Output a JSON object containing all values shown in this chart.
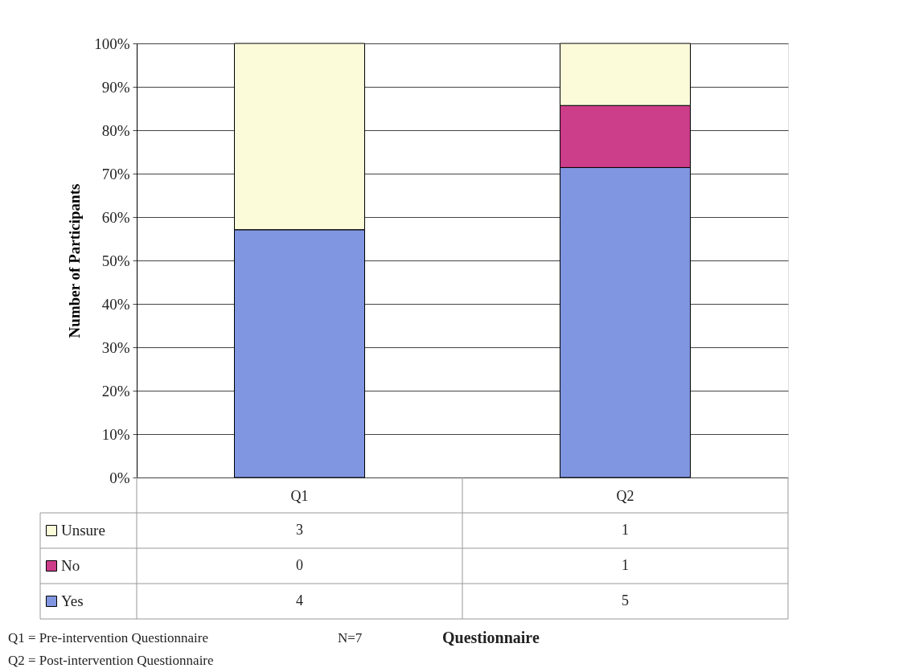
{
  "chart_data": {
    "type": "bar",
    "stacked": true,
    "ylabel": "Number of Participants",
    "categories": [
      "Q1",
      "Q2"
    ],
    "series": [
      {
        "name": "Yes",
        "color": "#8096e0",
        "values": [
          57.1,
          71.4
        ]
      },
      {
        "name": "No",
        "color": "#cc3d8a",
        "values": [
          0,
          14.3
        ]
      },
      {
        "name": "Unsure",
        "color": "#fbfbda",
        "values": [
          42.9,
          14.3
        ]
      }
    ],
    "ylim": [
      0,
      100
    ],
    "yticks": [
      {
        "value": 0,
        "label": "0%"
      },
      {
        "value": 10,
        "label": "10%"
      },
      {
        "value": 20,
        "label": "20%"
      },
      {
        "value": 30,
        "label": "30%"
      },
      {
        "value": 40,
        "label": "40%"
      },
      {
        "value": 50,
        "label": "50%"
      },
      {
        "value": 60,
        "label": "60%"
      },
      {
        "value": 70,
        "label": "70%"
      },
      {
        "value": 80,
        "label": "80%"
      },
      {
        "value": 90,
        "label": "90%"
      },
      {
        "value": 100,
        "label": "100%"
      }
    ],
    "grid": "y",
    "legend": "bottom left",
    "annotations": [
      "Q1 = Pre-intervention Questionnaire",
      "N=7",
      "Questionnaire",
      "Q2 = Post-intervention Questionnaire",
      "3",
      "1",
      "0",
      "1",
      "4",
      "5"
    ]
  }
}
